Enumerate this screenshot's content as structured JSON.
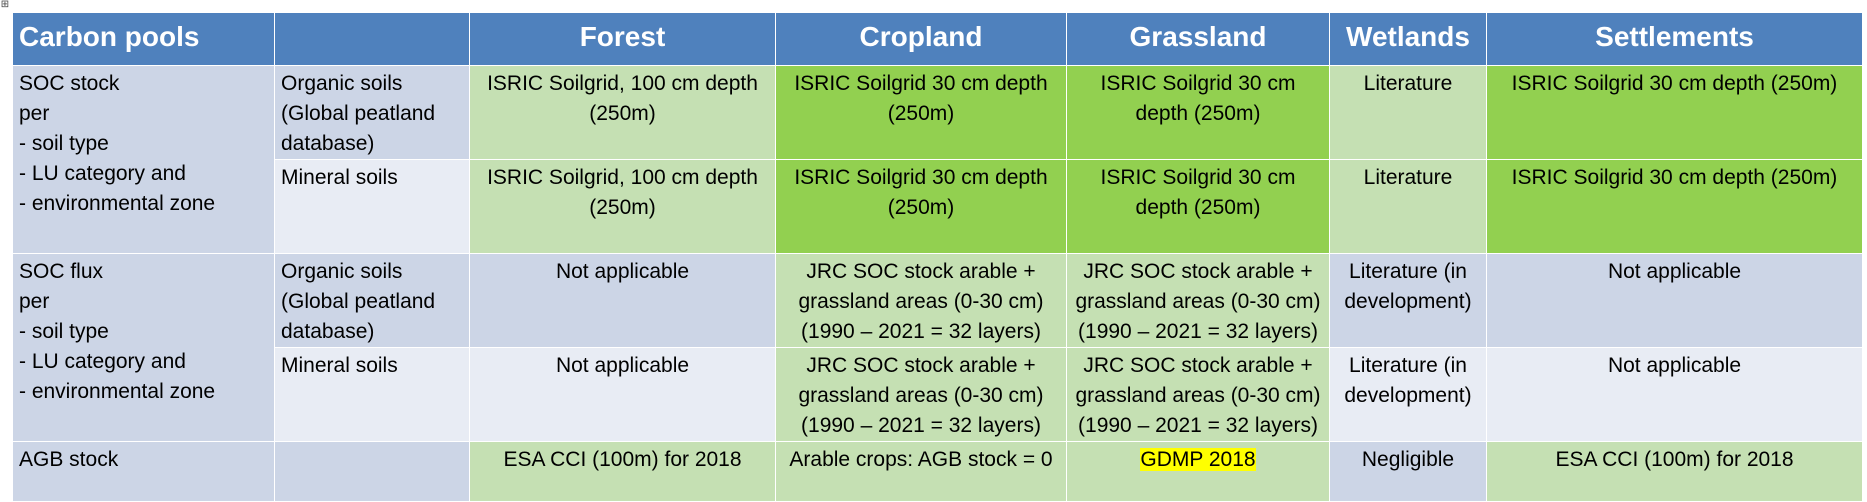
{
  "move_handle": "⊞",
  "header": {
    "col0": "Carbon pools",
    "col1": "",
    "col2": "Forest",
    "col3": "Cropland",
    "col4": "Grassland",
    "col5": "Wetlands",
    "col6": "Settlements"
  },
  "colors": {
    "header_blue": "#4f81bd",
    "light_blue": "#ccd5e6",
    "pale_blue": "#e8ecf4",
    "light_green": "#c5e0b3",
    "green": "#92d050",
    "highlight_yellow": "#ffff00"
  },
  "rows": {
    "soc_stock": {
      "pool": "SOC stock\nper\n- soil type\n- LU category and\n- environmental zone",
      "organic": {
        "type": "Organic soils\n(Global peatland\ndatabase)",
        "forest": "ISRIC Soilgrid, 100 cm depth\n(250m)",
        "cropland": "ISRIC Soilgrid 30 cm depth\n(250m)",
        "grassland": "ISRIC Soilgrid 30 cm\ndepth (250m)",
        "wetlands": "Literature",
        "settlements": "ISRIC Soilgrid 30 cm depth (250m)"
      },
      "mineral": {
        "type": "Mineral soils",
        "forest": "ISRIC Soilgrid, 100 cm depth\n(250m)",
        "cropland": "ISRIC Soilgrid 30 cm depth\n(250m)",
        "grassland": "ISRIC Soilgrid 30 cm\ndepth (250m)",
        "wetlands": "Literature",
        "settlements": "ISRIC Soilgrid 30 cm depth (250m)"
      }
    },
    "soc_flux": {
      "pool": "SOC flux\nper\n- soil type\n- LU category and\n- environmental zone",
      "organic": {
        "type": "Organic soils\n(Global peatland\ndatabase)",
        "forest": "Not applicable",
        "cropland": "JRC SOC stock arable +\ngrassland areas (0-30 cm)\n(1990 – 2021 = 32 layers)",
        "grassland": "JRC SOC stock arable +\ngrassland areas (0-30 cm)\n(1990 – 2021 = 32 layers)",
        "wetlands": "Literature (in\ndevelopment)",
        "settlements": "Not applicable"
      },
      "mineral": {
        "type": "Mineral soils",
        "forest": "Not applicable",
        "cropland": "JRC SOC stock arable +\ngrassland areas (0-30 cm)\n(1990 – 2021 = 32 layers)",
        "grassland": "JRC SOC stock arable +\ngrassland areas (0-30 cm)\n(1990 – 2021 = 32 layers)",
        "wetlands": "Literature (in\ndevelopment)",
        "settlements": "Not applicable"
      }
    },
    "agb_stock": {
      "pool": "AGB stock",
      "type": "",
      "forest": "ESA CCI (100m) for 2018",
      "cropland": "Arable crops: AGB stock = 0",
      "grassland": "GDMP 2018",
      "wetlands": "Negligible",
      "settlements": "ESA CCI (100m) for 2018"
    }
  }
}
